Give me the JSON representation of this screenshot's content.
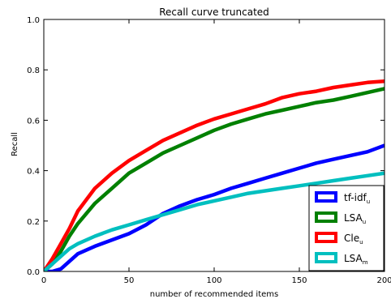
{
  "chart_data": {
    "type": "line",
    "title": "Recall curve truncated",
    "xlabel": "number of recommended items",
    "ylabel": "Recall",
    "xlim": [
      0,
      200
    ],
    "ylim": [
      0,
      1.0
    ],
    "xticks": [
      0,
      50,
      100,
      150,
      200
    ],
    "xtick_labels": [
      "0",
      "50",
      "100",
      "150",
      "200"
    ],
    "yticks": [
      0,
      0.2,
      0.4,
      0.6,
      0.8,
      1.0
    ],
    "ytick_labels": [
      "0.0",
      "0.2",
      "0.4",
      "0.6",
      "0.8",
      "1.0"
    ],
    "grid": false,
    "legend_position": "bottom-right",
    "series": [
      {
        "name": "tf-idf",
        "subscript": "u",
        "color": "#0000ff",
        "x": [
          0,
          5,
          10,
          15,
          20,
          30,
          40,
          50,
          60,
          70,
          80,
          90,
          100,
          110,
          120,
          130,
          140,
          150,
          160,
          170,
          180,
          190,
          200
        ],
        "y": [
          0,
          0,
          0.01,
          0.04,
          0.07,
          0.1,
          0.125,
          0.15,
          0.185,
          0.23,
          0.26,
          0.285,
          0.305,
          0.33,
          0.35,
          0.37,
          0.39,
          0.41,
          0.43,
          0.445,
          0.46,
          0.475,
          0.5
        ]
      },
      {
        "name": "LSA",
        "subscript": "u",
        "color": "#008000",
        "x": [
          0,
          5,
          10,
          15,
          20,
          30,
          40,
          50,
          60,
          70,
          80,
          90,
          100,
          110,
          120,
          130,
          140,
          150,
          160,
          170,
          180,
          190,
          200
        ],
        "y": [
          0,
          0.03,
          0.08,
          0.14,
          0.19,
          0.27,
          0.33,
          0.39,
          0.43,
          0.47,
          0.5,
          0.53,
          0.56,
          0.585,
          0.605,
          0.625,
          0.64,
          0.655,
          0.67,
          0.68,
          0.695,
          0.71,
          0.725
        ]
      },
      {
        "name": "Cle",
        "subscript": "u",
        "color": "#ff0000",
        "x": [
          0,
          5,
          10,
          15,
          20,
          30,
          40,
          50,
          60,
          70,
          80,
          90,
          100,
          110,
          120,
          130,
          140,
          150,
          160,
          170,
          180,
          190,
          200
        ],
        "y": [
          0,
          0.05,
          0.11,
          0.17,
          0.24,
          0.33,
          0.39,
          0.44,
          0.48,
          0.52,
          0.55,
          0.58,
          0.605,
          0.625,
          0.645,
          0.665,
          0.69,
          0.705,
          0.715,
          0.73,
          0.74,
          0.75,
          0.755
        ]
      },
      {
        "name": "LSA",
        "subscript": "m",
        "color": "#00bfbf",
        "x": [
          0,
          5,
          10,
          15,
          20,
          30,
          40,
          50,
          60,
          70,
          80,
          90,
          100,
          110,
          120,
          130,
          140,
          150,
          160,
          170,
          180,
          190,
          200
        ],
        "y": [
          0,
          0.03,
          0.06,
          0.09,
          0.11,
          0.14,
          0.165,
          0.185,
          0.205,
          0.225,
          0.245,
          0.265,
          0.28,
          0.295,
          0.31,
          0.32,
          0.33,
          0.34,
          0.35,
          0.36,
          0.37,
          0.38,
          0.39
        ]
      }
    ]
  }
}
